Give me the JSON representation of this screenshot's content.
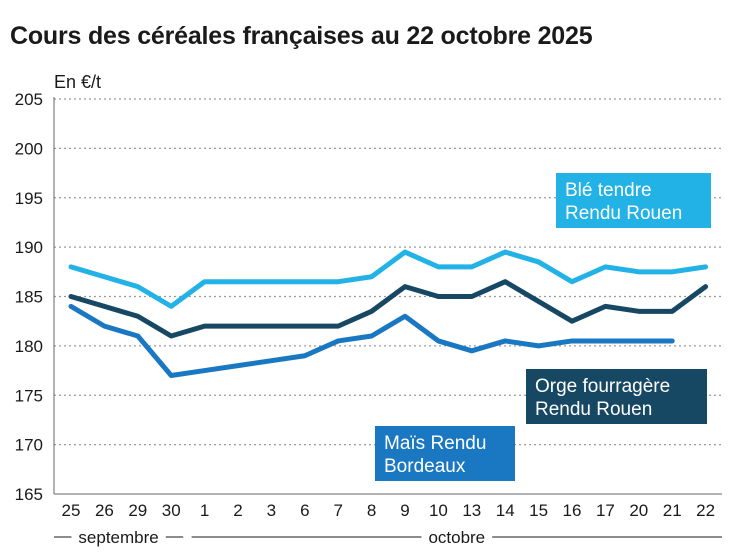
{
  "title": "Cours des céréales françaises au 22 octobre 2025",
  "chart_data": {
    "type": "line",
    "title": "Cours des céréales françaises au 22 octobre 2025",
    "ylabel": "En €/t",
    "ylim": [
      165,
      205
    ],
    "yticks": [
      205,
      200,
      195,
      190,
      185,
      180,
      175,
      170,
      165
    ],
    "grid": true,
    "categories": [
      "25",
      "26",
      "29",
      "30",
      "1",
      "2",
      "3",
      "6",
      "7",
      "8",
      "9",
      "10",
      "13",
      "14",
      "15",
      "16",
      "17",
      "20",
      "21",
      "22"
    ],
    "months": [
      {
        "label": "septembre",
        "from": 0,
        "to": 3
      },
      {
        "label": "octobre",
        "from": 4,
        "to": 19
      }
    ],
    "series": [
      {
        "name": "Blé tendre Rendu Rouen",
        "label_lines": [
          "Blé tendre",
          "Rendu Rouen"
        ],
        "color": "#22b2e6",
        "values": [
          188,
          187,
          186,
          184,
          186.5,
          186.5,
          186.5,
          186.5,
          186.5,
          187,
          189.5,
          188,
          188,
          189.5,
          188.5,
          186.5,
          188,
          187.5,
          187.5,
          188
        ]
      },
      {
        "name": "Orge fourragère Rendu Rouen",
        "label_lines": [
          "Orge fourragère",
          "Rendu Rouen"
        ],
        "color": "#174863",
        "values": [
          185,
          184,
          183,
          181,
          182,
          182,
          182,
          182,
          182,
          183.5,
          186,
          185,
          185,
          186.5,
          184.5,
          182.5,
          184,
          183.5,
          183.5,
          186
        ]
      },
      {
        "name": "Maïs Rendu Bordeaux",
        "label_lines": [
          "Maïs Rendu",
          "Bordeaux"
        ],
        "color": "#1a78c2",
        "values": [
          184,
          182,
          181,
          177,
          177.5,
          178,
          178.5,
          179,
          180.5,
          181,
          183,
          180.5,
          179.5,
          180.5,
          180,
          180.5,
          180.5,
          180.5,
          180.5,
          null
        ]
      }
    ]
  }
}
